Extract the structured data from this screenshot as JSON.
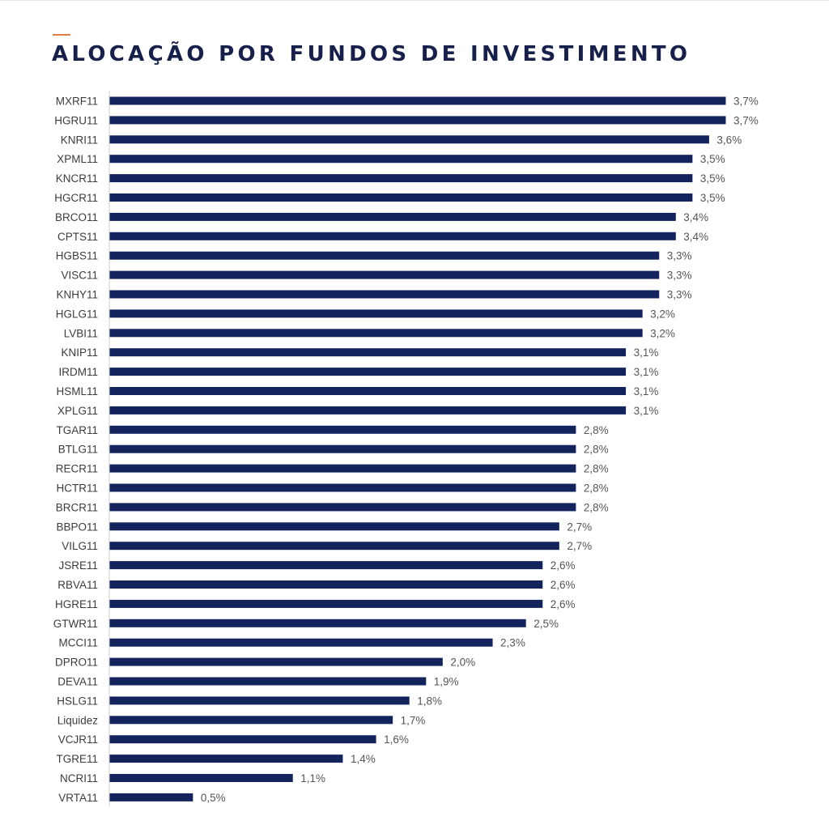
{
  "title": "ALOCAÇÃO POR FUNDOS DE INVESTIMENTO",
  "colors": {
    "bar": "#13235b",
    "accent": "#e07b45",
    "title": "#16204a",
    "axis": "#cfcfcf"
  },
  "chart_data": {
    "type": "bar",
    "orientation": "horizontal",
    "title": "ALOCAÇÃO POR FUNDOS DE INVESTIMENTO",
    "xlabel": "",
    "ylabel": "",
    "grid": false,
    "legend": "none",
    "xlim": [
      0,
      3.7
    ],
    "categories": [
      "MXRF11",
      "HGRU11",
      "KNRI11",
      "XPML11",
      "KNCR11",
      "HGCR11",
      "BRCO11",
      "CPTS11",
      "HGBS11",
      "VISC11",
      "KNHY11",
      "HGLG11",
      "LVBI11",
      "KNIP11",
      "IRDM11",
      "HSML11",
      "XPLG11",
      "TGAR11",
      "BTLG11",
      "RECR11",
      "HCTR11",
      "BRCR11",
      "BBPO11",
      "VILG11",
      "JSRE11",
      "RBVA11",
      "HGRE11",
      "GTWR11",
      "MCCI11",
      "DPRO11",
      "DEVA11",
      "HSLG11",
      "Liquidez",
      "VCJR11",
      "TGRE11",
      "NCRI11",
      "VRTA11"
    ],
    "values": [
      3.7,
      3.7,
      3.6,
      3.5,
      3.5,
      3.5,
      3.4,
      3.4,
      3.3,
      3.3,
      3.3,
      3.2,
      3.2,
      3.1,
      3.1,
      3.1,
      3.1,
      2.8,
      2.8,
      2.8,
      2.8,
      2.8,
      2.7,
      2.7,
      2.6,
      2.6,
      2.6,
      2.5,
      2.3,
      2.0,
      1.9,
      1.8,
      1.7,
      1.6,
      1.4,
      1.1,
      0.5
    ],
    "labels": [
      "3,7%",
      "3,7%",
      "3,6%",
      "3,5%",
      "3,5%",
      "3,5%",
      "3,4%",
      "3,4%",
      "3,3%",
      "3,3%",
      "3,3%",
      "3,2%",
      "3,2%",
      "3,1%",
      "3,1%",
      "3,1%",
      "3,1%",
      "2,8%",
      "2,8%",
      "2,8%",
      "2,8%",
      "2,8%",
      "2,7%",
      "2,7%",
      "2,6%",
      "2,6%",
      "2,6%",
      "2,5%",
      "2,3%",
      "2,0%",
      "1,9%",
      "1,8%",
      "1,7%",
      "1,6%",
      "1,4%",
      "1,1%",
      "0,5%"
    ]
  }
}
